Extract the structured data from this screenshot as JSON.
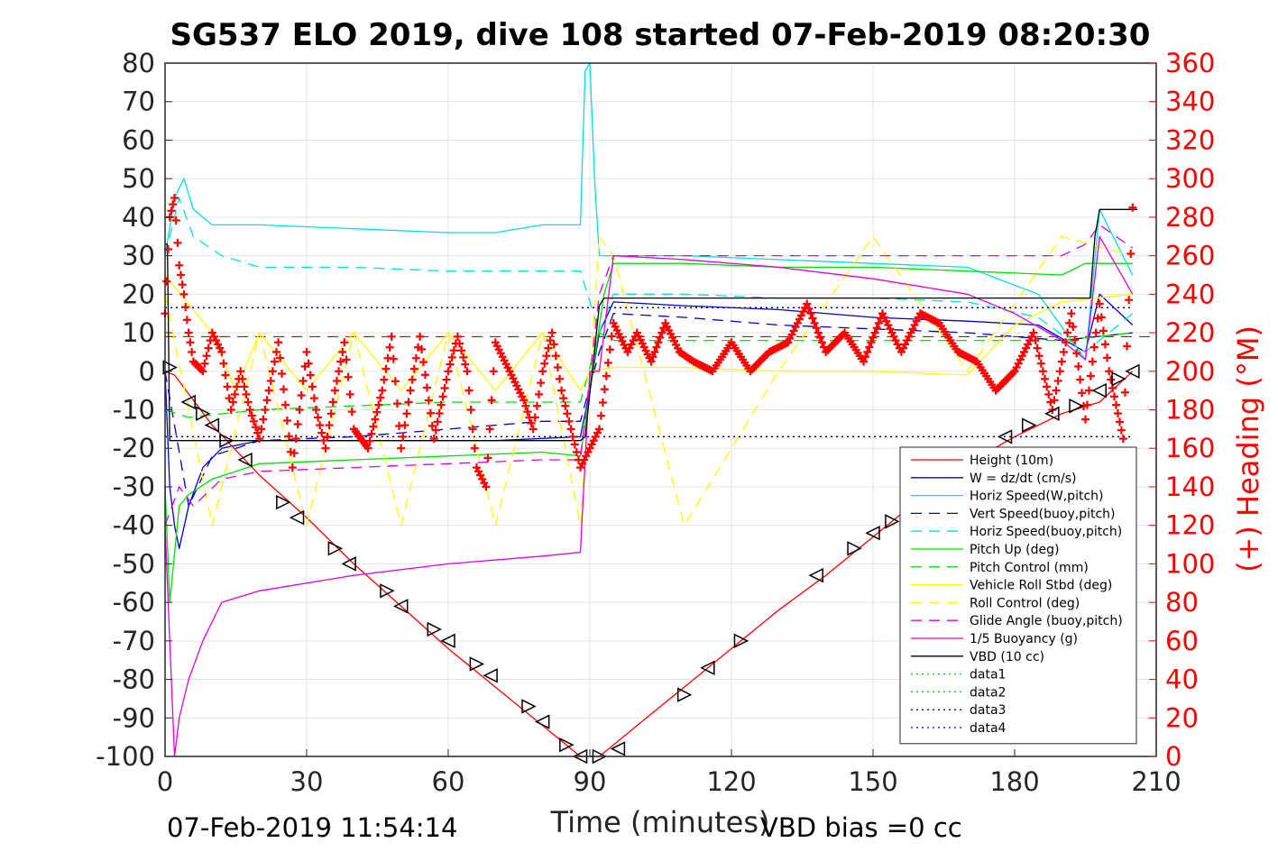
{
  "chart_data": {
    "type": "line",
    "title": "SG537 ELO 2019, dive 108 started 07-Feb-2019 08:20:30",
    "xlabel": "Time (minutes)",
    "ylabel": "",
    "y2label": "(+) Heading (°M)",
    "xlim": [
      0,
      210
    ],
    "ylim": [
      -100,
      80
    ],
    "y2lim": [
      0,
      360
    ],
    "xticks": [
      0,
      30,
      60,
      90,
      120,
      150,
      180,
      210
    ],
    "yticks": [
      80,
      70,
      60,
      50,
      40,
      30,
      20,
      10,
      0,
      -10,
      -20,
      -30,
      -40,
      -50,
      -60,
      -70,
      -80,
      -90,
      -100
    ],
    "y2ticks": [
      360,
      340,
      320,
      300,
      280,
      260,
      240,
      220,
      200,
      180,
      160,
      140,
      120,
      100,
      80,
      60,
      40,
      20,
      0
    ],
    "grid": true,
    "legend_position": "lower-right",
    "footer_left": "07-Feb-2019 11:54:14",
    "footer_right": "VBD bias =0 cc",
    "series": [
      {
        "name": "Height (10m)",
        "color": "#ff0000",
        "style": "solid",
        "x": [
          0,
          2,
          10,
          20,
          30,
          40,
          50,
          60,
          70,
          80,
          88,
          92,
          95,
          100,
          110,
          120,
          130,
          140,
          150,
          160,
          170,
          180,
          190,
          198,
          205
        ],
        "y": [
          0,
          -1,
          -14,
          -27,
          -38,
          -50,
          -61,
          -72,
          -82,
          -92,
          -100,
          -100,
          -97,
          -92,
          -82,
          -72,
          -62,
          -53,
          -43,
          -33,
          -24,
          -17,
          -11,
          -8,
          0
        ]
      },
      {
        "name": "W = dz/dt (cm/s)",
        "color": "#0000cc",
        "style": "solid",
        "x": [
          0,
          1,
          2,
          3,
          5,
          8,
          12,
          20,
          30,
          50,
          70,
          88,
          90,
          92,
          95,
          110,
          130,
          150,
          170,
          185,
          195,
          198,
          205
        ],
        "y": [
          0,
          -30,
          -40,
          -46,
          -35,
          -25,
          -20,
          -18,
          -18,
          -18,
          -18,
          -17,
          -5,
          10,
          18,
          17,
          16,
          14,
          13,
          12,
          5,
          20,
          12
        ]
      },
      {
        "name": "Horiz Speed(W,pitch)",
        "color": "#00e0e0",
        "style": "solid",
        "x": [
          0,
          2,
          4,
          6,
          10,
          20,
          40,
          60,
          70,
          80,
          88,
          89,
          90,
          91,
          92,
          95,
          110,
          130,
          150,
          170,
          185,
          195,
          198,
          205
        ],
        "y": [
          30,
          45,
          50,
          42,
          38,
          38,
          37,
          36,
          36,
          38,
          38,
          78,
          80,
          50,
          30,
          30,
          30,
          29,
          28,
          27,
          20,
          3,
          42,
          25
        ]
      },
      {
        "name": "Vert Speed(buoy,pitch)",
        "color": "#0000cc",
        "style": "dash",
        "x": [
          0,
          5,
          10,
          20,
          40,
          60,
          80,
          88,
          92,
          95,
          110,
          130,
          150,
          170,
          190,
          205
        ],
        "y": [
          0,
          -35,
          -22,
          -18,
          -17,
          -15,
          -13,
          -13,
          5,
          15,
          14,
          12,
          11,
          10,
          8,
          10
        ]
      },
      {
        "name": "Horiz Speed(buoy,pitch)",
        "color": "#00e0e0",
        "style": "dash",
        "x": [
          0,
          3,
          6,
          12,
          20,
          40,
          60,
          80,
          88,
          92,
          95,
          110,
          130,
          150,
          170,
          185,
          195,
          205
        ],
        "y": [
          30,
          45,
          35,
          30,
          27,
          27,
          26,
          26,
          26,
          10,
          20,
          20,
          19,
          19,
          18,
          14,
          5,
          15
        ]
      },
      {
        "name": "Pitch Up (deg)",
        "color": "#00e000",
        "style": "solid",
        "x": [
          0,
          1,
          3,
          5,
          10,
          20,
          40,
          60,
          80,
          88,
          90,
          93,
          95,
          110,
          130,
          150,
          170,
          190,
          195,
          205
        ],
        "y": [
          -30,
          -60,
          -35,
          -32,
          -28,
          -24,
          -23,
          -22,
          -21,
          -22,
          -5,
          20,
          28,
          28,
          27,
          27,
          26,
          25,
          28,
          28
        ]
      },
      {
        "name": "Pitch Control (mm)",
        "color": "#00e000",
        "style": "dash",
        "x": [
          0,
          5,
          20,
          40,
          60,
          88,
          92,
          95,
          110,
          130,
          150,
          170,
          190,
          205
        ],
        "y": [
          -10,
          -12,
          -10,
          -9,
          -8,
          -8,
          10,
          8,
          8,
          8,
          8,
          8,
          8,
          10
        ]
      },
      {
        "name": "Vehicle Roll Stbd (deg)",
        "color": "#ffff00",
        "style": "solid",
        "x": [
          0,
          10,
          15,
          20,
          30,
          40,
          50,
          60,
          70,
          80,
          88,
          90,
          95,
          100,
          110,
          130,
          150,
          170,
          180,
          190,
          205
        ],
        "y": [
          25,
          10,
          -5,
          10,
          -5,
          10,
          -5,
          10,
          -5,
          10,
          -5,
          0,
          1,
          1,
          1,
          0,
          0,
          -1,
          12,
          18,
          20
        ]
      },
      {
        "name": "Roll Control (deg)",
        "color": "#ffff00",
        "style": "dash",
        "x": [
          0,
          10,
          20,
          30,
          40,
          50,
          60,
          70,
          80,
          88,
          92,
          95,
          110,
          130,
          150,
          170,
          190,
          205
        ],
        "y": [
          20,
          -40,
          10,
          -40,
          10,
          -40,
          10,
          -40,
          10,
          -40,
          35,
          30,
          -40,
          0,
          35,
          0,
          35,
          30
        ]
      },
      {
        "name": "Glide Angle (buoy,pitch)",
        "color": "#e000e0",
        "style": "dash",
        "x": [
          0,
          3,
          6,
          12,
          20,
          40,
          60,
          80,
          88,
          92,
          95,
          110,
          130,
          150,
          170,
          190,
          195,
          198,
          205
        ],
        "y": [
          -40,
          -30,
          -35,
          -28,
          -26,
          -25,
          -24,
          -23,
          -23,
          20,
          30,
          30,
          30,
          30,
          30,
          30,
          33,
          38,
          32
        ]
      },
      {
        "name": "1/5 Buoyancy (g)",
        "color": "#e000e0",
        "style": "solid",
        "x": [
          0,
          1,
          2,
          3,
          5,
          8,
          12,
          20,
          40,
          60,
          80,
          88,
          90,
          92,
          95,
          110,
          130,
          150,
          170,
          180,
          190,
          195,
          198,
          205
        ],
        "y": [
          -40,
          -70,
          -100,
          -90,
          -80,
          -70,
          -60,
          -57,
          -53,
          -50,
          -48,
          -47,
          0,
          0,
          30,
          29,
          27,
          24,
          20,
          15,
          8,
          3,
          35,
          20
        ]
      },
      {
        "name": "VBD (10 cc)",
        "color": "#000000",
        "style": "solid",
        "x": [
          0,
          0.5,
          1,
          3,
          88,
          89,
          92,
          93,
          95,
          110,
          196,
          197,
          198,
          206
        ],
        "y": [
          33,
          33,
          -18,
          -18,
          -18,
          -17,
          17,
          19,
          19,
          19,
          19,
          35,
          42,
          42
        ]
      },
      {
        "name": "data1",
        "color": "#00cc00",
        "style": "dot",
        "x": [],
        "y": []
      },
      {
        "name": "data2",
        "color": "#00cc00",
        "style": "dot",
        "x": [],
        "y": []
      },
      {
        "name": "data3",
        "color": "#00008b",
        "style": "dot",
        "x": [
          0,
          205
        ],
        "y": [
          -17,
          -17
        ]
      },
      {
        "name": "data4",
        "color": "#00008b",
        "style": "dot",
        "x": [
          0,
          205
        ],
        "y": [
          16.5,
          16.5
        ]
      }
    ],
    "reference_line": {
      "color": "#8b0000",
      "style": "dash",
      "y": 9
    },
    "heading": {
      "color": "#ff0000",
      "marker": "+",
      "axis": "right",
      "x": [
        0,
        1,
        2,
        3,
        4,
        5,
        6,
        8,
        10,
        12,
        14,
        16,
        18,
        20,
        22,
        24,
        27,
        30,
        32,
        34,
        36,
        38,
        40,
        43,
        46,
        48,
        50,
        52,
        54,
        57,
        60,
        62,
        64,
        66,
        68,
        70,
        73,
        76,
        78,
        80,
        82,
        84,
        86,
        88,
        90,
        92,
        95,
        98,
        100,
        103,
        106,
        109,
        112,
        116,
        120,
        124,
        128,
        132,
        136,
        140,
        144,
        148,
        152,
        156,
        160,
        164,
        168,
        172,
        176,
        180,
        184,
        188,
        192,
        195,
        198,
        200,
        203,
        205
      ],
      "y": [
        230,
        280,
        290,
        255,
        240,
        220,
        205,
        200,
        220,
        210,
        180,
        200,
        180,
        165,
        190,
        215,
        150,
        210,
        180,
        160,
        190,
        215,
        170,
        160,
        190,
        218,
        160,
        190,
        218,
        165,
        200,
        218,
        200,
        150,
        140,
        215,
        200,
        185,
        170,
        200,
        220,
        190,
        170,
        150,
        160,
        170,
        225,
        210,
        220,
        205,
        225,
        210,
        205,
        200,
        215,
        200,
        210,
        215,
        235,
        210,
        220,
        205,
        230,
        210,
        230,
        225,
        210,
        205,
        190,
        200,
        220,
        180,
        230,
        175,
        235,
        200,
        165,
        285
      ]
    },
    "depth_markers": {
      "color": "#000000",
      "marker": "triangle",
      "x": [
        1,
        5,
        8,
        10,
        13,
        17,
        25,
        28,
        36,
        39,
        47,
        50,
        57,
        60,
        66,
        69,
        77,
        80,
        85,
        88,
        92,
        96,
        110,
        115,
        122,
        138,
        146,
        150,
        154,
        160,
        170,
        178,
        183,
        188,
        193,
        198,
        202,
        205
      ],
      "y": [
        1,
        -8,
        -11,
        -14,
        -18,
        -23,
        -34,
        -38,
        -46,
        -50,
        -57,
        -61,
        -67,
        -70,
        -76,
        -79,
        -87,
        -91,
        -97,
        -100,
        -100,
        -98,
        -84,
        -77,
        -70,
        -53,
        -46,
        -42,
        -39,
        -33,
        -24,
        -17,
        -14,
        -11,
        -9,
        -5,
        -2,
        0
      ]
    }
  }
}
